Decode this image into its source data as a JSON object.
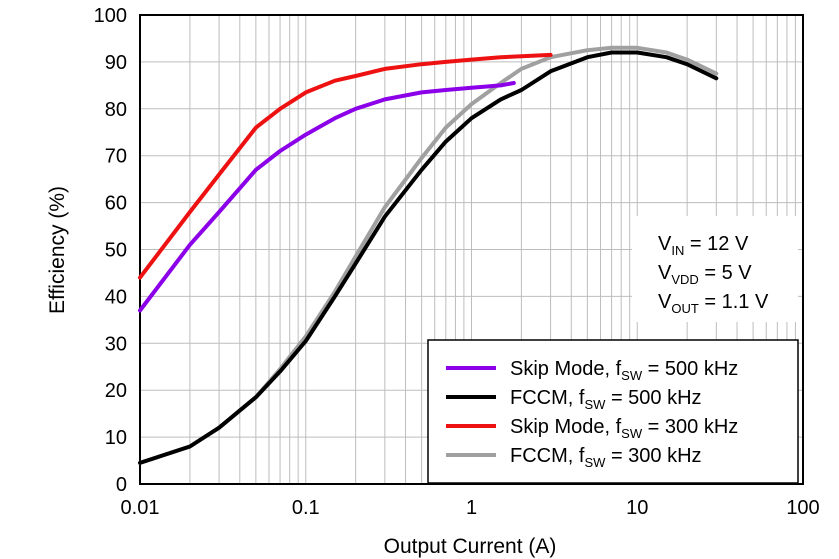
{
  "chart_data": {
    "type": "line",
    "xscale": "log",
    "xlabel": "Output Current (A)",
    "ylabel": "Efficiency (%)",
    "xlim": [
      0.01,
      100
    ],
    "ylim": [
      0,
      100
    ],
    "grid": true,
    "x_ticks": [
      0.01,
      0.1,
      1,
      10,
      100
    ],
    "x_tick_labels": [
      "0.01",
      "0.1",
      "1",
      "10",
      "100"
    ],
    "y_ticks": [
      0,
      10,
      20,
      30,
      40,
      50,
      60,
      70,
      80,
      90,
      100
    ],
    "y_tick_labels": [
      "0",
      "10",
      "20",
      "30",
      "40",
      "50",
      "60",
      "70",
      "80",
      "90",
      "100"
    ],
    "legend_position": "bottom-right",
    "series": [
      {
        "name": "Skip Mode, fSW = 500 kHz",
        "legend_main": "Skip Mode, f",
        "legend_sub": "SW",
        "legend_rest": " = 500 kHz",
        "color": "#8B00E8",
        "x": [
          0.01,
          0.02,
          0.03,
          0.05,
          0.07,
          0.1,
          0.15,
          0.2,
          0.3,
          0.5,
          0.7,
          1.0,
          1.5,
          1.8
        ],
        "y": [
          37,
          51,
          58,
          67,
          71,
          74.5,
          78,
          80,
          82,
          83.5,
          84,
          84.5,
          85,
          85.5
        ]
      },
      {
        "name": "FCCM, fSW = 500 kHz",
        "legend_main": "FCCM, f",
        "legend_sub": "SW",
        "legend_rest": " = 500 kHz",
        "color": "#000000",
        "x": [
          0.01,
          0.02,
          0.03,
          0.05,
          0.07,
          0.1,
          0.15,
          0.2,
          0.3,
          0.5,
          0.7,
          1.0,
          1.5,
          2.0,
          3.0,
          5.0,
          7.0,
          10.0,
          15.0,
          20.0,
          30.0
        ],
        "y": [
          4.5,
          8,
          12,
          18.5,
          24,
          30.5,
          40,
          47,
          57,
          67,
          73,
          78,
          82,
          84,
          88,
          91,
          92,
          92,
          91,
          89.5,
          86.5
        ]
      },
      {
        "name": "Skip Mode, fSW = 300 kHz",
        "legend_main": "Skip Mode, f",
        "legend_sub": "SW",
        "legend_rest": " = 300 kHz",
        "color": "#EE1111",
        "x": [
          0.01,
          0.02,
          0.03,
          0.05,
          0.07,
          0.1,
          0.15,
          0.2,
          0.3,
          0.5,
          0.7,
          1.0,
          1.5,
          2.0,
          3.0
        ],
        "y": [
          44,
          58,
          66,
          76,
          80,
          83.5,
          86,
          87,
          88.5,
          89.5,
          90,
          90.5,
          91,
          91.2,
          91.5
        ]
      },
      {
        "name": "FCCM, fSW = 300 kHz",
        "legend_main": "FCCM, f",
        "legend_sub": "SW",
        "legend_rest": " = 300 kHz",
        "color": "#A0A0A0",
        "x": [
          0.01,
          0.02,
          0.03,
          0.05,
          0.07,
          0.1,
          0.15,
          0.2,
          0.3,
          0.5,
          0.7,
          1.0,
          1.5,
          2.0,
          3.0,
          5.0,
          7.0,
          10.0,
          15.0,
          20.0,
          30.0
        ],
        "y": [
          4.5,
          8,
          12,
          18.5,
          24.5,
          31.5,
          41,
          48.5,
          59,
          69.5,
          76,
          81,
          85.5,
          88.5,
          91,
          92.5,
          93,
          93,
          92,
          90.5,
          87.5
        ]
      }
    ],
    "annotation": {
      "lines": [
        {
          "main": "V",
          "sub": "IN",
          "rest": " = 12 V"
        },
        {
          "main": "V",
          "sub": "VDD",
          "rest": " = 5 V"
        },
        {
          "main": "V",
          "sub": "OUT",
          "rest": " = 1.1 V"
        }
      ]
    }
  }
}
